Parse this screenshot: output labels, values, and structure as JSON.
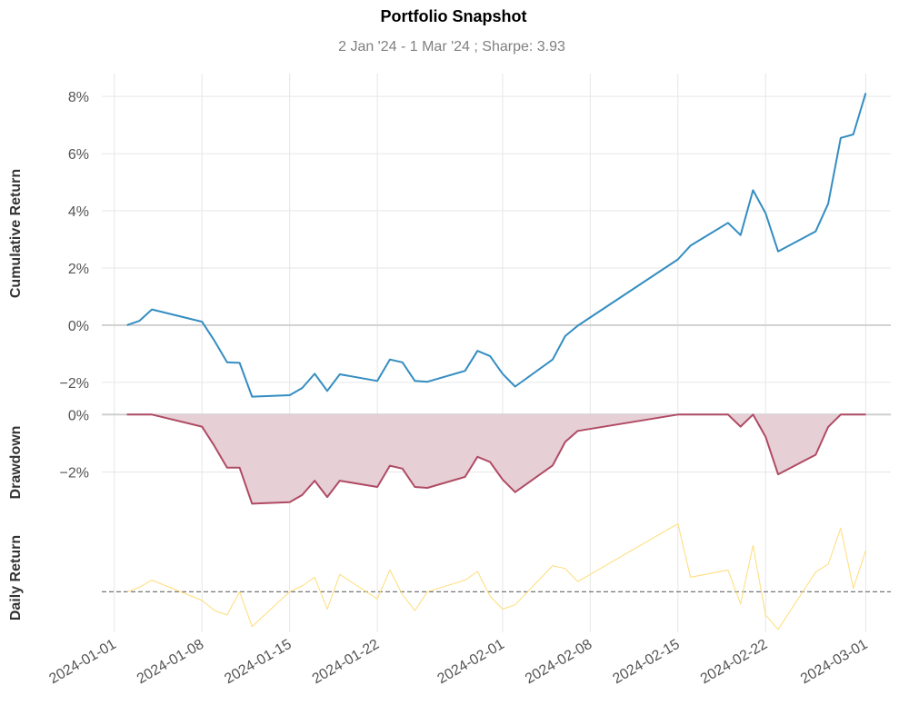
{
  "chart_data": {
    "type": "line",
    "title": "Portfolio Snapshot",
    "subtitle": "2 Jan '24 -  1 Mar '24 ;  Sharpe: 3.93",
    "x_ticks": [
      "2024-01-01",
      "2024-01-08",
      "2024-01-15",
      "2024-01-22",
      "2024-02-01",
      "2024-02-08",
      "2024-02-15",
      "2024-02-22",
      "2024-03-01"
    ],
    "x_range": [
      "2023-12-31",
      "2024-03-03"
    ],
    "grid": true,
    "colors": {
      "cumulative": "#348dc1",
      "drawdown": "#af4b64",
      "drawdown_fill": "#e7cfd6",
      "daily": "#fedd78",
      "zero_line": "#cccccc",
      "daily_zero_line": "#777777",
      "grid": "#e6e6e6"
    },
    "panels": [
      {
        "id": "cumulative",
        "ylabel": "Cumulative Return",
        "ylim": [
          -2.8,
          8.8
        ],
        "yticks": [
          8,
          6,
          4,
          2,
          0,
          -2
        ],
        "ytick_labels": [
          "8%",
          "6%",
          "4%",
          "2%",
          "0%",
          "−2%"
        ],
        "series": [
          {
            "type": "line",
            "x": [
              "2024-01-02",
              "2024-01-03",
              "2024-01-04",
              "2024-01-08",
              "2024-01-09",
              "2024-01-10",
              "2024-01-11",
              "2024-01-12",
              "2024-01-15",
              "2024-01-16",
              "2024-01-17",
              "2024-01-18",
              "2024-01-19",
              "2024-01-22",
              "2024-01-23",
              "2024-01-24",
              "2024-01-25",
              "2024-01-26",
              "2024-01-29",
              "2024-01-30",
              "2024-01-31",
              "2024-02-01",
              "2024-02-02",
              "2024-02-05",
              "2024-02-06",
              "2024-02-07",
              "2024-02-15",
              "2024-02-16",
              "2024-02-19",
              "2024-02-20",
              "2024-02-21",
              "2024-02-22",
              "2024-02-23",
              "2024-02-26",
              "2024-02-27",
              "2024-02-28",
              "2024-02-29",
              "2024-03-01"
            ],
            "values": [
              0.0,
              0.15,
              0.55,
              0.12,
              -0.55,
              -1.3,
              -1.32,
              -2.5,
              -2.45,
              -2.2,
              -1.7,
              -2.3,
              -1.72,
              -1.95,
              -1.2,
              -1.3,
              -1.95,
              -1.98,
              -1.6,
              -0.9,
              -1.08,
              -1.7,
              -2.15,
              -1.2,
              -0.38,
              -0.02,
              2.3,
              2.78,
              3.58,
              3.15,
              4.72,
              3.92,
              2.58,
              3.28,
              4.25,
              6.55,
              6.67,
              8.12
            ]
          }
        ]
      },
      {
        "id": "drawdown",
        "ylabel": "Drawdown",
        "ylim": [
          -3.5,
          0.2
        ],
        "yticks": [
          0,
          -2
        ],
        "ytick_labels": [
          "0%",
          "−2%"
        ],
        "series": [
          {
            "type": "area",
            "x": [
              "2024-01-02",
              "2024-01-03",
              "2024-01-04",
              "2024-01-08",
              "2024-01-09",
              "2024-01-10",
              "2024-01-11",
              "2024-01-12",
              "2024-01-15",
              "2024-01-16",
              "2024-01-17",
              "2024-01-18",
              "2024-01-19",
              "2024-01-22",
              "2024-01-23",
              "2024-01-24",
              "2024-01-25",
              "2024-01-26",
              "2024-01-29",
              "2024-01-30",
              "2024-01-31",
              "2024-02-01",
              "2024-02-02",
              "2024-02-05",
              "2024-02-06",
              "2024-02-07",
              "2024-02-15",
              "2024-02-16",
              "2024-02-19",
              "2024-02-20",
              "2024-02-21",
              "2024-02-22",
              "2024-02-23",
              "2024-02-26",
              "2024-02-27",
              "2024-02-28",
              "2024-02-29",
              "2024-03-01"
            ],
            "values": [
              0,
              0,
              0,
              -0.42,
              -1.1,
              -1.85,
              -1.85,
              -3.1,
              -3.05,
              -2.8,
              -2.3,
              -2.87,
              -2.3,
              -2.52,
              -1.78,
              -1.88,
              -2.52,
              -2.55,
              -2.17,
              -1.47,
              -1.65,
              -2.26,
              -2.7,
              -1.77,
              -0.95,
              -0.57,
              0,
              0,
              0,
              -0.42,
              0,
              -0.77,
              -2.08,
              -1.4,
              -0.43,
              0,
              0,
              0
            ]
          }
        ]
      },
      {
        "id": "daily",
        "ylabel": "Daily Return",
        "ylim": [
          -1.4,
          2.55
        ],
        "series": [
          {
            "type": "line",
            "x": [
              "2024-01-02",
              "2024-01-03",
              "2024-01-04",
              "2024-01-08",
              "2024-01-09",
              "2024-01-10",
              "2024-01-11",
              "2024-01-12",
              "2024-01-15",
              "2024-01-16",
              "2024-01-17",
              "2024-01-18",
              "2024-01-19",
              "2024-01-22",
              "2024-01-23",
              "2024-01-24",
              "2024-01-25",
              "2024-01-26",
              "2024-01-29",
              "2024-01-30",
              "2024-01-31",
              "2024-02-01",
              "2024-02-02",
              "2024-02-05",
              "2024-02-06",
              "2024-02-07",
              "2024-02-15",
              "2024-02-16",
              "2024-02-19",
              "2024-02-20",
              "2024-02-21",
              "2024-02-22",
              "2024-02-23",
              "2024-02-26",
              "2024-02-27",
              "2024-02-28",
              "2024-02-29",
              "2024-03-01"
            ],
            "values": [
              0.0,
              0.15,
              0.4,
              -0.3,
              -0.65,
              -0.8,
              0.0,
              -1.2,
              0.0,
              0.2,
              0.5,
              -0.6,
              0.6,
              -0.25,
              0.75,
              -0.1,
              -0.65,
              0.0,
              0.4,
              0.7,
              -0.15,
              -0.6,
              -0.45,
              0.9,
              0.8,
              0.35,
              2.35,
              0.5,
              0.75,
              -0.42,
              1.6,
              -0.8,
              -1.3,
              0.68,
              0.95,
              2.2,
              0.12,
              1.42
            ]
          }
        ]
      }
    ]
  }
}
